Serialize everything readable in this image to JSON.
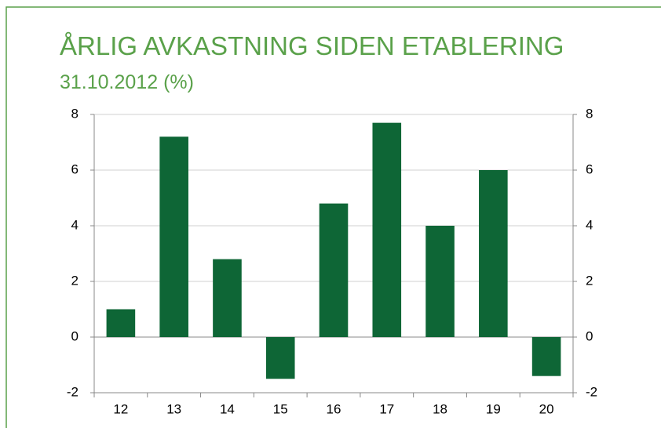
{
  "chart_data": {
    "type": "bar",
    "title": "ÅRLIG AVKASTNING SIDEN ETABLERING",
    "subtitle": "31.10.2012 (%)",
    "categories": [
      "12",
      "13",
      "14",
      "15",
      "16",
      "17",
      "18",
      "19",
      "20"
    ],
    "values": [
      1.0,
      7.2,
      2.8,
      -1.5,
      4.8,
      7.7,
      4.0,
      6.0,
      -1.4
    ],
    "color": "#0e6636",
    "ylim": [
      -2,
      8
    ],
    "yticks": [
      -2,
      0,
      2,
      4,
      6,
      8
    ],
    "y2lim": [
      -2,
      8
    ],
    "y2ticks": [
      -2,
      0,
      2,
      4,
      6,
      8
    ],
    "grid": true
  }
}
